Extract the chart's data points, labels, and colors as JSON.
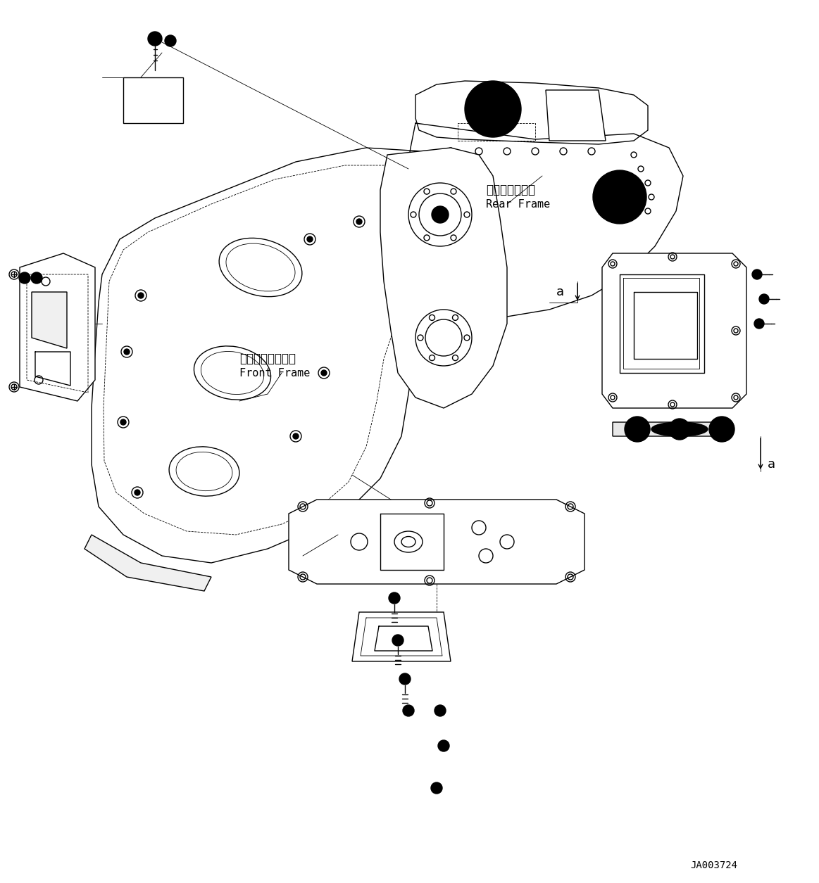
{
  "background_color": "#ffffff",
  "line_color": "#000000",
  "figsize": [
    11.63,
    12.55
  ],
  "dpi": 100,
  "label_rear_frame_ja": "リヤーフレーム",
  "label_rear_frame_en": "Rear Frame",
  "label_front_frame_ja": "フロントフレーム",
  "label_front_frame_en": "Front Frame",
  "label_a1": "a",
  "label_a2": "a",
  "part_number": "JA003724",
  "text_color": "#000000"
}
